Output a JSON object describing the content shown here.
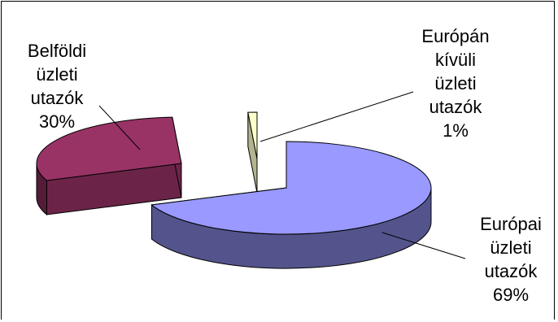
{
  "chart_data": {
    "type": "pie",
    "title": "",
    "slices": [
      {
        "lines": [
          "Európai",
          "üzleti",
          "utazók",
          "69%"
        ],
        "value": 69,
        "color": "#9999ff"
      },
      {
        "lines": [
          "Belföldi",
          "üzleti",
          "utazók",
          "30%"
        ],
        "value": 30,
        "color": "#993366"
      },
      {
        "lines": [
          "Európán",
          "kívüli",
          "üzleti",
          "utazók",
          "1%"
        ],
        "value": 1,
        "color": "#ffffcc"
      }
    ],
    "legend": false,
    "exploded": true,
    "three_d": true
  }
}
